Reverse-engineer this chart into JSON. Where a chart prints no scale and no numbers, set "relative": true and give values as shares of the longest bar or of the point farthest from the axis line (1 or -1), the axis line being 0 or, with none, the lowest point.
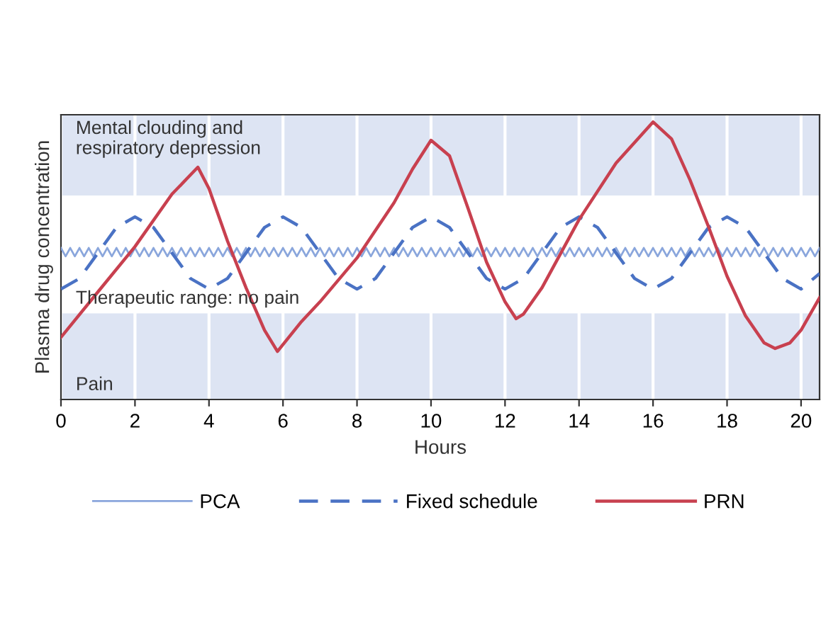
{
  "chart_data": {
    "type": "line",
    "xlabel": "Hours",
    "ylabel": "Plasma drug concentration",
    "relative": true,
    "xlim": [
      0,
      20.5
    ],
    "xticks": [
      0,
      2,
      4,
      6,
      8,
      10,
      12,
      14,
      16,
      18,
      20
    ],
    "grid": "x",
    "legend": "bottom",
    "bands": [
      {
        "axis": "y",
        "from": 0,
        "to": 0.311,
        "label": "Pain",
        "color": "#dde4f3"
      },
      {
        "axis": "y",
        "from": 0.311,
        "to": 0.735,
        "label": "Therapeutic range: no pain",
        "color": "#ffffff"
      },
      {
        "axis": "y",
        "from": 0.735,
        "to": 1.026,
        "label": "Mental clouding and\nrespiratory depression",
        "color": "#dde4f3"
      }
    ],
    "series": [
      {
        "name": "PCA",
        "color": "#8aa6dc",
        "line_style": "solid",
        "x": [
          0,
          0.125,
          0.25,
          0.375,
          0.5,
          0.625,
          0.75,
          0.875,
          1,
          1.125,
          1.25,
          1.375,
          1.5,
          1.625,
          1.75,
          1.875,
          2,
          2.125,
          2.25,
          2.375,
          2.5,
          2.625,
          2.75,
          2.875,
          3,
          3.125,
          3.25,
          3.375,
          3.5,
          3.625,
          3.75,
          3.875,
          4,
          4.125,
          4.25,
          4.375,
          4.5,
          4.625,
          4.75,
          4.875,
          5,
          5.125,
          5.25,
          5.375,
          5.5,
          5.625,
          5.75,
          5.875,
          6,
          6.125,
          6.25,
          6.375,
          6.5,
          6.625,
          6.75,
          6.875,
          7,
          7.125,
          7.25,
          7.375,
          7.5,
          7.625,
          7.75,
          7.875,
          8,
          8.125,
          8.25,
          8.375,
          8.5,
          8.625,
          8.75,
          8.875,
          9,
          9.125,
          9.25,
          9.375,
          9.5,
          9.625,
          9.75,
          9.875,
          10,
          10.125,
          10.25,
          10.375,
          10.5,
          10.625,
          10.75,
          10.875,
          11,
          11.125,
          11.25,
          11.375,
          11.5,
          11.625,
          11.75,
          11.875,
          12,
          12.125,
          12.25,
          12.375,
          12.5,
          12.625,
          12.75,
          12.875,
          13,
          13.125,
          13.25,
          13.375,
          13.5,
          13.625,
          13.75,
          13.875,
          14,
          14.125,
          14.25,
          14.375,
          14.5,
          14.625,
          14.75,
          14.875,
          15,
          15.125,
          15.25,
          15.375,
          15.5,
          15.625,
          15.75,
          15.875,
          16,
          16.125,
          16.25,
          16.375,
          16.5,
          16.625,
          16.75,
          16.875,
          17,
          17.125,
          17.25,
          17.375,
          17.5,
          17.625,
          17.75,
          17.875,
          18,
          18.125,
          18.25,
          18.375,
          18.5,
          18.625,
          18.75,
          18.875,
          19,
          19.125,
          19.25,
          19.375,
          19.5,
          19.625,
          19.75,
          19.875,
          20,
          20.125,
          20.25,
          20.375,
          20.5
        ],
        "values": [
          0.546,
          0.516,
          0.546,
          0.516,
          0.546,
          0.516,
          0.546,
          0.516,
          0.546,
          0.516,
          0.546,
          0.516,
          0.546,
          0.516,
          0.546,
          0.516,
          0.546,
          0.516,
          0.546,
          0.516,
          0.546,
          0.516,
          0.546,
          0.516,
          0.546,
          0.516,
          0.546,
          0.516,
          0.546,
          0.516,
          0.546,
          0.516,
          0.546,
          0.516,
          0.546,
          0.516,
          0.546,
          0.516,
          0.546,
          0.516,
          0.546,
          0.516,
          0.546,
          0.516,
          0.546,
          0.516,
          0.546,
          0.516,
          0.546,
          0.516,
          0.546,
          0.516,
          0.546,
          0.516,
          0.546,
          0.516,
          0.546,
          0.516,
          0.546,
          0.516,
          0.546,
          0.516,
          0.546,
          0.516,
          0.546,
          0.516,
          0.546,
          0.516,
          0.546,
          0.516,
          0.546,
          0.516,
          0.546,
          0.516,
          0.546,
          0.516,
          0.546,
          0.516,
          0.546,
          0.516,
          0.546,
          0.516,
          0.546,
          0.516,
          0.546,
          0.516,
          0.546,
          0.516,
          0.546,
          0.516,
          0.546,
          0.516,
          0.546,
          0.516,
          0.546,
          0.516,
          0.546,
          0.516,
          0.546,
          0.516,
          0.546,
          0.516,
          0.546,
          0.516,
          0.546,
          0.516,
          0.546,
          0.516,
          0.546,
          0.516,
          0.546,
          0.516,
          0.546,
          0.516,
          0.546,
          0.516,
          0.546,
          0.516,
          0.546,
          0.516,
          0.546,
          0.516,
          0.546,
          0.516,
          0.546,
          0.516,
          0.546,
          0.516,
          0.546,
          0.516,
          0.546,
          0.516,
          0.546,
          0.516,
          0.546,
          0.516,
          0.546,
          0.516,
          0.546,
          0.516,
          0.546,
          0.516,
          0.546,
          0.516,
          0.546,
          0.516,
          0.546,
          0.516,
          0.546,
          0.516,
          0.546,
          0.516,
          0.546,
          0.516,
          0.546,
          0.516,
          0.546,
          0.516,
          0.546,
          0.516,
          0.546,
          0.516,
          0.546,
          0.516,
          0.546
        ]
      },
      {
        "name": "Fixed schedule",
        "color": "#4a72c4",
        "line_style": "dashed",
        "x": [
          0,
          0.5,
          1,
          1.5,
          2,
          2.5,
          3,
          3.5,
          4,
          4.5,
          5,
          5.5,
          6,
          6.5,
          7,
          7.5,
          8,
          8.5,
          9,
          9.5,
          10,
          10.5,
          11,
          11.5,
          12,
          12.5,
          13,
          13.5,
          14,
          14.5,
          15,
          15.5,
          16,
          16.5,
          17,
          17.5,
          18,
          18.5,
          19,
          19.5,
          20,
          20.5
        ],
        "values": [
          0.398,
          0.436,
          0.528,
          0.62,
          0.658,
          0.62,
          0.528,
          0.436,
          0.398,
          0.436,
          0.528,
          0.62,
          0.658,
          0.62,
          0.528,
          0.436,
          0.398,
          0.436,
          0.528,
          0.62,
          0.658,
          0.62,
          0.528,
          0.436,
          0.398,
          0.436,
          0.528,
          0.62,
          0.658,
          0.62,
          0.528,
          0.436,
          0.398,
          0.436,
          0.528,
          0.62,
          0.658,
          0.62,
          0.528,
          0.436,
          0.398,
          0.454
        ]
      },
      {
        "name": "PRN",
        "color": "#c8404f",
        "line_style": "solid",
        "x": [
          0,
          1,
          2,
          3,
          3.7,
          4,
          4.5,
          5,
          5.5,
          5.85,
          6.5,
          7,
          8,
          9,
          9.5,
          10,
          10.5,
          11,
          11.5,
          12,
          12.3,
          12.5,
          13,
          14,
          15,
          16,
          16.5,
          17,
          17.5,
          18,
          18.5,
          19,
          19.3,
          19.7,
          20,
          20.5
        ],
        "values": [
          0.224,
          0.388,
          0.551,
          0.74,
          0.837,
          0.76,
          0.571,
          0.403,
          0.25,
          0.173,
          0.281,
          0.352,
          0.51,
          0.709,
          0.83,
          0.934,
          0.878,
          0.689,
          0.495,
          0.352,
          0.291,
          0.308,
          0.403,
          0.648,
          0.852,
          1.0,
          0.939,
          0.791,
          0.622,
          0.444,
          0.301,
          0.204,
          0.184,
          0.204,
          0.25,
          0.367
        ]
      }
    ]
  }
}
